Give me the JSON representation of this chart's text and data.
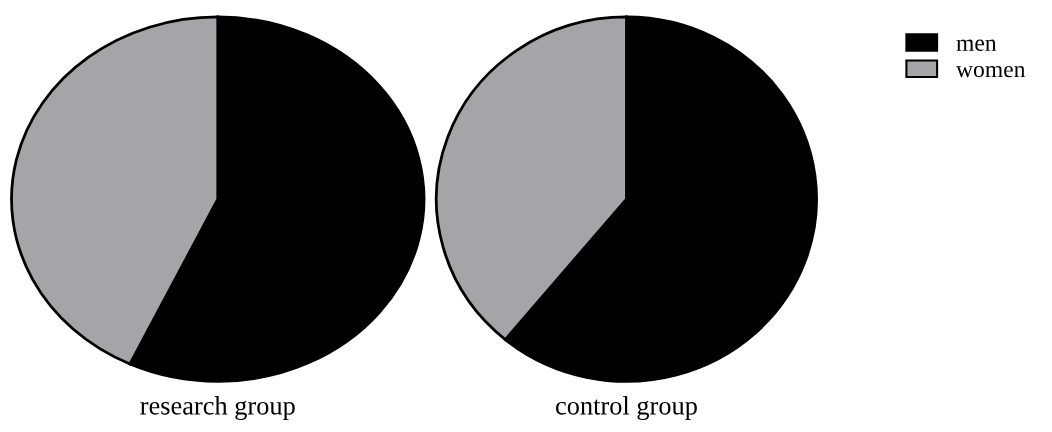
{
  "chart_data": [
    {
      "type": "pie",
      "title": "research group",
      "categories": [
        "men",
        "women"
      ],
      "values": [
        57,
        43
      ],
      "colors": [
        "#000000",
        "#a5a5a8"
      ],
      "legend": "top right"
    },
    {
      "type": "pie",
      "title": "control group",
      "categories": [
        null,
        null
      ],
      "values": [
        61,
        39
      ],
      "colors": [
        "#000000",
        "#a5a5a8"
      ]
    }
  ]
}
